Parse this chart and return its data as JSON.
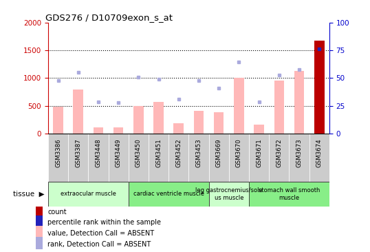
{
  "title": "GDS276 / D10709exon_s_at",
  "samples": [
    "GSM3386",
    "GSM3387",
    "GSM3448",
    "GSM3449",
    "GSM3450",
    "GSM3451",
    "GSM3452",
    "GSM3453",
    "GSM3669",
    "GSM3670",
    "GSM3671",
    "GSM3672",
    "GSM3673",
    "GSM3674"
  ],
  "bar_values": [
    480,
    800,
    110,
    115,
    500,
    575,
    185,
    415,
    380,
    1010,
    165,
    950,
    1130,
    1680
  ],
  "dot_values": [
    950,
    1110,
    570,
    555,
    1020,
    975,
    620,
    950,
    820,
    1290,
    575,
    1060,
    1150,
    1530
  ],
  "last_bar_color": "#bb0000",
  "last_dot_color": "#2222bb",
  "bar_color": "#ffb8b8",
  "dot_color": "#aaaadd",
  "ylim": [
    0,
    2000
  ],
  "y2lim": [
    0,
    100
  ],
  "yticks": [
    0,
    500,
    1000,
    1500,
    2000
  ],
  "y2ticks": [
    0,
    25,
    50,
    75,
    100
  ],
  "y_color": "#cc0000",
  "y2_color": "#0000cc",
  "tissue_groups": [
    {
      "label": "extraocular muscle",
      "start": 0,
      "end": 4,
      "color": "#ccffcc"
    },
    {
      "label": "cardiac ventricle muscle",
      "start": 4,
      "end": 8,
      "color": "#88ee88"
    },
    {
      "label": "leg gastrocnemius/sole\nus muscle",
      "start": 8,
      "end": 10,
      "color": "#ccffcc"
    },
    {
      "label": "stomach wall smooth\nmuscle",
      "start": 10,
      "end": 14,
      "color": "#88ee88"
    }
  ],
  "legend_items": [
    {
      "label": "count",
      "color": "#bb0000"
    },
    {
      "label": "percentile rank within the sample",
      "color": "#2222bb"
    },
    {
      "label": "value, Detection Call = ABSENT",
      "color": "#ffb8b8"
    },
    {
      "label": "rank, Detection Call = ABSENT",
      "color": "#aaaadd"
    }
  ],
  "xlabel_bg": "#cccccc",
  "plot_bg": "#ffffff",
  "tissue_label": "tissue"
}
